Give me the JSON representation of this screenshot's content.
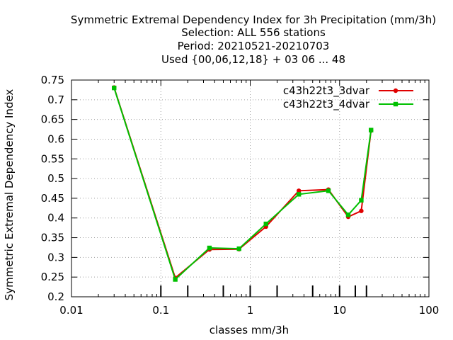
{
  "chart_data": {
    "type": "line",
    "title_lines": [
      "Symmetric Extremal Dependency Index  for 3h Precipitation (mm/3h)",
      "Selection: ALL    556 stations",
      "Period: 20210521-20210703",
      "Used {00,06,12,18} + 03 06 ... 48"
    ],
    "xlabel": "classes mm/3h",
    "ylabel": "Symmetric Extremal Dependency Index",
    "xscale": "log",
    "xlim": [
      0.01,
      100
    ],
    "ylim": [
      0.2,
      0.75
    ],
    "xticks": [
      0.01,
      0.1,
      1,
      10,
      100
    ],
    "xtick_labels": [
      "0.01",
      "0.1",
      "1",
      "10",
      "100"
    ],
    "yticks": [
      0.2,
      0.25,
      0.3,
      0.35,
      0.4,
      0.45,
      0.5,
      0.55,
      0.6,
      0.65,
      0.7,
      0.75
    ],
    "ytick_labels": [
      "0.2",
      "0.25",
      "0.3",
      "0.35",
      "0.4",
      "0.45",
      "0.5",
      "0.55",
      "0.6",
      "0.65",
      "0.7",
      "0.75"
    ],
    "class_markers": [
      0.1,
      0.2,
      0.5,
      1,
      2,
      5,
      10,
      15,
      20
    ],
    "grid": true,
    "legend_position": "top-right",
    "series": [
      {
        "name": "c43h22t3_3dvar",
        "color": "#e00000",
        "x": [
          0.03,
          0.145,
          0.35,
          0.75,
          1.5,
          3.5,
          7.5,
          12.5,
          17.5,
          22.5
        ],
        "y": [
          0.731,
          0.248,
          0.32,
          0.321,
          0.378,
          0.469,
          0.472,
          0.403,
          0.418,
          0.622
        ]
      },
      {
        "name": "c43h22t3_4dvar",
        "color": "#00c000",
        "x": [
          0.03,
          0.145,
          0.35,
          0.75,
          1.5,
          3.5,
          7.5,
          12.5,
          17.5,
          22.5
        ],
        "y": [
          0.73,
          0.244,
          0.324,
          0.322,
          0.385,
          0.46,
          0.469,
          0.408,
          0.445,
          0.623
        ]
      }
    ]
  }
}
